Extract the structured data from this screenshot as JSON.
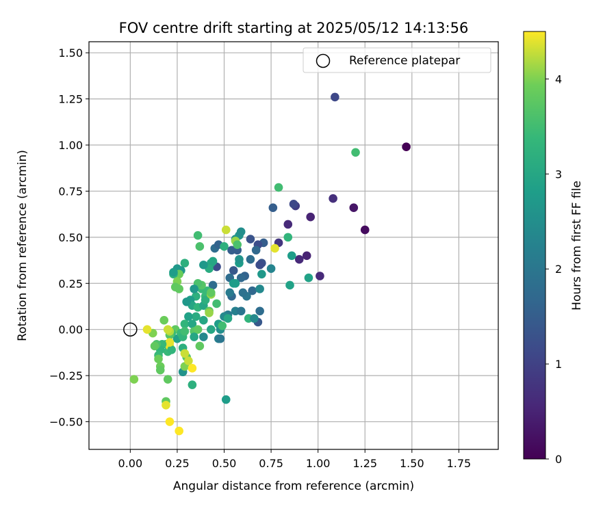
{
  "chart_data": {
    "type": "scatter",
    "title": "FOV centre drift starting at 2025/05/12 14:13:56",
    "xlabel": "Angular distance from reference (arcmin)",
    "ylabel": "Rotation from reference (arcmin)",
    "xlim": [
      -0.22,
      1.96
    ],
    "ylim": [
      -0.65,
      1.56
    ],
    "xticks": [
      "0.00",
      "0.25",
      "0.50",
      "0.75",
      "1.00",
      "1.25",
      "1.50",
      "1.75"
    ],
    "yticks": [
      "1.50",
      "1.25",
      "1.00",
      "0.75",
      "0.50",
      "0.25",
      "0.00",
      "−0.25",
      "−0.50"
    ],
    "xtick_values": [
      0,
      0.25,
      0.5,
      0.75,
      1.0,
      1.25,
      1.5,
      1.75
    ],
    "ytick_values": [
      1.5,
      1.25,
      1.0,
      0.75,
      0.5,
      0.25,
      0.0,
      -0.25,
      -0.5
    ],
    "grid": true,
    "legend": {
      "position": "top-right",
      "label": "Reference platepar",
      "marker": "open-circle"
    },
    "reference_point": {
      "x": 0.0,
      "y": 0.0
    },
    "colorbar": {
      "label": "Hours from first FF file",
      "colormap": "viridis",
      "range": [
        0,
        4.5
      ],
      "ticks": [
        "0",
        "1",
        "2",
        "3",
        "4"
      ],
      "tick_values": [
        0,
        1,
        2,
        3,
        4
      ]
    },
    "points": [
      {
        "x": 1.47,
        "y": 0.99,
        "t": 0.0
      },
      {
        "x": 1.25,
        "y": 0.54,
        "t": 0.15
      },
      {
        "x": 1.19,
        "y": 0.66,
        "t": 0.3
      },
      {
        "x": 1.09,
        "y": 1.26,
        "t": 1.1
      },
      {
        "x": 1.08,
        "y": 0.71,
        "t": 0.7
      },
      {
        "x": 1.01,
        "y": 0.29,
        "t": 0.6
      },
      {
        "x": 0.96,
        "y": 0.61,
        "t": 0.5
      },
      {
        "x": 0.94,
        "y": 0.4,
        "t": 0.5
      },
      {
        "x": 0.9,
        "y": 0.38,
        "t": 0.6
      },
      {
        "x": 0.88,
        "y": 0.67,
        "t": 0.9
      },
      {
        "x": 0.84,
        "y": 0.57,
        "t": 0.6
      },
      {
        "x": 0.79,
        "y": 0.47,
        "t": 0.8
      },
      {
        "x": 0.76,
        "y": 0.66,
        "t": 1.5
      },
      {
        "x": 0.87,
        "y": 0.68,
        "t": 1.1
      },
      {
        "x": 0.7,
        "y": 0.36,
        "t": 1.3
      },
      {
        "x": 0.71,
        "y": 0.47,
        "t": 1.5
      },
      {
        "x": 0.68,
        "y": 0.46,
        "t": 1.2
      },
      {
        "x": 0.69,
        "y": 0.35,
        "t": 1.2
      },
      {
        "x": 0.64,
        "y": 0.49,
        "t": 1.3
      },
      {
        "x": 0.67,
        "y": 0.43,
        "t": 1.7
      },
      {
        "x": 0.69,
        "y": 0.1,
        "t": 1.8
      },
      {
        "x": 0.68,
        "y": 0.04,
        "t": 1.4
      },
      {
        "x": 0.64,
        "y": 0.38,
        "t": 1.8
      },
      {
        "x": 0.65,
        "y": 0.21,
        "t": 1.7
      },
      {
        "x": 0.62,
        "y": 0.18,
        "t": 2.0
      },
      {
        "x": 0.6,
        "y": 0.2,
        "t": 1.9
      },
      {
        "x": 0.61,
        "y": 0.29,
        "t": 1.6
      },
      {
        "x": 0.59,
        "y": 0.28,
        "t": 1.7
      },
      {
        "x": 0.57,
        "y": 0.43,
        "t": 1.5
      },
      {
        "x": 0.54,
        "y": 0.43,
        "t": 1.5
      },
      {
        "x": 0.55,
        "y": 0.32,
        "t": 1.4
      },
      {
        "x": 0.53,
        "y": 0.28,
        "t": 1.8
      },
      {
        "x": 0.54,
        "y": 0.18,
        "t": 1.7
      },
      {
        "x": 0.53,
        "y": 0.2,
        "t": 2.1
      },
      {
        "x": 0.56,
        "y": 0.1,
        "t": 2.2
      },
      {
        "x": 0.59,
        "y": 0.1,
        "t": 2.0
      },
      {
        "x": 0.52,
        "y": 0.08,
        "t": 2.1
      },
      {
        "x": 0.5,
        "y": 0.07,
        "t": 2.4
      },
      {
        "x": 0.48,
        "y": 0.0,
        "t": 2.5
      },
      {
        "x": 0.47,
        "y": -0.05,
        "t": 2.2
      },
      {
        "x": 0.48,
        "y": -0.05,
        "t": 2.0
      },
      {
        "x": 0.44,
        "y": 0.24,
        "t": 1.8
      },
      {
        "x": 0.45,
        "y": 0.44,
        "t": 1.8
      },
      {
        "x": 0.46,
        "y": 0.34,
        "t": 1.2
      },
      {
        "x": 0.47,
        "y": 0.46,
        "t": 1.6
      },
      {
        "x": 0.5,
        "y": 0.45,
        "t": 3.2
      },
      {
        "x": 0.58,
        "y": 0.51,
        "t": 2.6
      },
      {
        "x": 0.59,
        "y": 0.53,
        "t": 2.5
      },
      {
        "x": 0.56,
        "y": 0.49,
        "t": 2.6
      },
      {
        "x": 0.51,
        "y": 0.54,
        "t": 4.3
      },
      {
        "x": 0.56,
        "y": 0.48,
        "t": 4.1
      },
      {
        "x": 0.57,
        "y": 0.46,
        "t": 3.6
      },
      {
        "x": 0.58,
        "y": 0.36,
        "t": 2.8
      },
      {
        "x": 0.58,
        "y": 0.38,
        "t": 2.6
      },
      {
        "x": 0.55,
        "y": 0.25,
        "t": 2.8
      },
      {
        "x": 0.56,
        "y": 0.25,
        "t": 2.8
      },
      {
        "x": 0.52,
        "y": 0.06,
        "t": 3.0
      },
      {
        "x": 0.63,
        "y": 0.06,
        "t": 3.3
      },
      {
        "x": 0.66,
        "y": 0.06,
        "t": 2.4
      },
      {
        "x": 0.69,
        "y": 0.22,
        "t": 2.4
      },
      {
        "x": 0.7,
        "y": 0.3,
        "t": 2.7
      },
      {
        "x": 0.75,
        "y": 0.33,
        "t": 2.3
      },
      {
        "x": 0.77,
        "y": 0.44,
        "t": 4.4
      },
      {
        "x": 0.79,
        "y": 0.77,
        "t": 3.5
      },
      {
        "x": 0.84,
        "y": 0.5,
        "t": 3.3
      },
      {
        "x": 0.86,
        "y": 0.4,
        "t": 2.8
      },
      {
        "x": 0.85,
        "y": 0.24,
        "t": 2.9
      },
      {
        "x": 0.95,
        "y": 0.28,
        "t": 2.9
      },
      {
        "x": 1.2,
        "y": 0.96,
        "t": 3.5
      },
      {
        "x": 0.51,
        "y": -0.38,
        "t": 2.8
      },
      {
        "x": 0.43,
        "y": 0.36,
        "t": 3.0
      },
      {
        "x": 0.44,
        "y": 0.37,
        "t": 3.0
      },
      {
        "x": 0.42,
        "y": 0.33,
        "t": 3.1
      },
      {
        "x": 0.39,
        "y": 0.35,
        "t": 2.7
      },
      {
        "x": 0.36,
        "y": 0.51,
        "t": 3.5
      },
      {
        "x": 0.37,
        "y": 0.45,
        "t": 3.6
      },
      {
        "x": 0.4,
        "y": 0.18,
        "t": 3.4
      },
      {
        "x": 0.41,
        "y": 0.21,
        "t": 3.4
      },
      {
        "x": 0.38,
        "y": 0.22,
        "t": 3.4
      },
      {
        "x": 0.38,
        "y": 0.24,
        "t": 3.7
      },
      {
        "x": 0.36,
        "y": 0.25,
        "t": 3.6
      },
      {
        "x": 0.35,
        "y": 0.18,
        "t": 3.2
      },
      {
        "x": 0.34,
        "y": 0.22,
        "t": 2.7
      },
      {
        "x": 0.32,
        "y": 0.16,
        "t": 2.8
      },
      {
        "x": 0.33,
        "y": 0.13,
        "t": 3.0
      },
      {
        "x": 0.3,
        "y": 0.15,
        "t": 2.7
      },
      {
        "x": 0.36,
        "y": 0.12,
        "t": 3.3
      },
      {
        "x": 0.39,
        "y": 0.13,
        "t": 3.0
      },
      {
        "x": 0.4,
        "y": 0.16,
        "t": 3.2
      },
      {
        "x": 0.43,
        "y": 0.19,
        "t": 4.1
      },
      {
        "x": 0.43,
        "y": 0.2,
        "t": 3.8
      },
      {
        "x": 0.46,
        "y": 0.14,
        "t": 3.5
      },
      {
        "x": 0.42,
        "y": 0.1,
        "t": 3.8
      },
      {
        "x": 0.42,
        "y": 0.09,
        "t": 4.1
      },
      {
        "x": 0.39,
        "y": 0.05,
        "t": 3.0
      },
      {
        "x": 0.35,
        "y": 0.07,
        "t": 3.1
      },
      {
        "x": 0.31,
        "y": 0.07,
        "t": 2.9
      },
      {
        "x": 0.29,
        "y": 0.03,
        "t": 3.3
      },
      {
        "x": 0.33,
        "y": 0.03,
        "t": 3.0
      },
      {
        "x": 0.34,
        "y": -0.01,
        "t": 3.7
      },
      {
        "x": 0.36,
        "y": 0.0,
        "t": 3.8
      },
      {
        "x": 0.34,
        "y": -0.04,
        "t": 3.0
      },
      {
        "x": 0.39,
        "y": -0.04,
        "t": 2.4
      },
      {
        "x": 0.37,
        "y": -0.09,
        "t": 3.8
      },
      {
        "x": 0.43,
        "y": 0.0,
        "t": 3.0
      },
      {
        "x": 0.47,
        "y": 0.03,
        "t": 2.8
      },
      {
        "x": 0.49,
        "y": 0.02,
        "t": 3.5
      },
      {
        "x": 0.29,
        "y": 0.36,
        "t": 3.2
      },
      {
        "x": 0.27,
        "y": 0.32,
        "t": 2.7
      },
      {
        "x": 0.25,
        "y": 0.33,
        "t": 2.7
      },
      {
        "x": 0.26,
        "y": 0.3,
        "t": 3.9
      },
      {
        "x": 0.23,
        "y": 0.3,
        "t": 3.2
      },
      {
        "x": 0.23,
        "y": 0.31,
        "t": 2.8
      },
      {
        "x": 0.25,
        "y": 0.26,
        "t": 4.0
      },
      {
        "x": 0.26,
        "y": 0.22,
        "t": 3.8
      },
      {
        "x": 0.24,
        "y": 0.23,
        "t": 3.8
      },
      {
        "x": 0.24,
        "y": 0.0,
        "t": 3.8
      },
      {
        "x": 0.25,
        "y": -0.05,
        "t": 2.9
      },
      {
        "x": 0.27,
        "y": -0.02,
        "t": 3.4
      },
      {
        "x": 0.28,
        "y": -0.04,
        "t": 3.3
      },
      {
        "x": 0.29,
        "y": -0.01,
        "t": 3.5
      },
      {
        "x": 0.28,
        "y": -0.1,
        "t": 3.2
      },
      {
        "x": 0.22,
        "y": -0.02,
        "t": 3.4
      },
      {
        "x": 0.21,
        "y": -0.03,
        "t": 3.7
      },
      {
        "x": 0.21,
        "y": -0.01,
        "t": 4.2
      },
      {
        "x": 0.2,
        "y": -0.12,
        "t": 3.4
      },
      {
        "x": 0.19,
        "y": -0.08,
        "t": 3.3
      },
      {
        "x": 0.21,
        "y": -0.09,
        "t": 4.4
      },
      {
        "x": 0.22,
        "y": -0.11,
        "t": 3.3
      },
      {
        "x": 0.18,
        "y": 0.05,
        "t": 3.9
      },
      {
        "x": 0.2,
        "y": 0.0,
        "t": 4.3
      },
      {
        "x": 0.21,
        "y": -0.07,
        "t": 4.4
      },
      {
        "x": 0.17,
        "y": -0.08,
        "t": 3.4
      },
      {
        "x": 0.16,
        "y": -0.11,
        "t": 3.3
      },
      {
        "x": 0.15,
        "y": -0.14,
        "t": 3.4
      },
      {
        "x": 0.14,
        "y": -0.08,
        "t": 3.6
      },
      {
        "x": 0.13,
        "y": -0.09,
        "t": 3.8
      },
      {
        "x": 0.12,
        "y": -0.02,
        "t": 4.0
      },
      {
        "x": 0.09,
        "y": 0.0,
        "t": 4.4
      },
      {
        "x": 0.15,
        "y": -0.16,
        "t": 3.9
      },
      {
        "x": 0.16,
        "y": -0.2,
        "t": 3.9
      },
      {
        "x": 0.16,
        "y": -0.22,
        "t": 3.8
      },
      {
        "x": 0.02,
        "y": -0.27,
        "t": 4.0
      },
      {
        "x": 0.2,
        "y": -0.27,
        "t": 3.8
      },
      {
        "x": 0.28,
        "y": -0.23,
        "t": 2.6
      },
      {
        "x": 0.29,
        "y": -0.2,
        "t": 4.0
      },
      {
        "x": 0.3,
        "y": -0.15,
        "t": 3.7
      },
      {
        "x": 0.29,
        "y": -0.13,
        "t": 4.3
      },
      {
        "x": 0.31,
        "y": -0.17,
        "t": 4.3
      },
      {
        "x": 0.33,
        "y": -0.21,
        "t": 4.5
      },
      {
        "x": 0.33,
        "y": -0.3,
        "t": 3.2
      },
      {
        "x": 0.19,
        "y": -0.39,
        "t": 3.8
      },
      {
        "x": 0.19,
        "y": -0.41,
        "t": 4.4
      },
      {
        "x": 0.21,
        "y": -0.5,
        "t": 4.5
      },
      {
        "x": 0.26,
        "y": -0.55,
        "t": 4.5
      }
    ]
  }
}
